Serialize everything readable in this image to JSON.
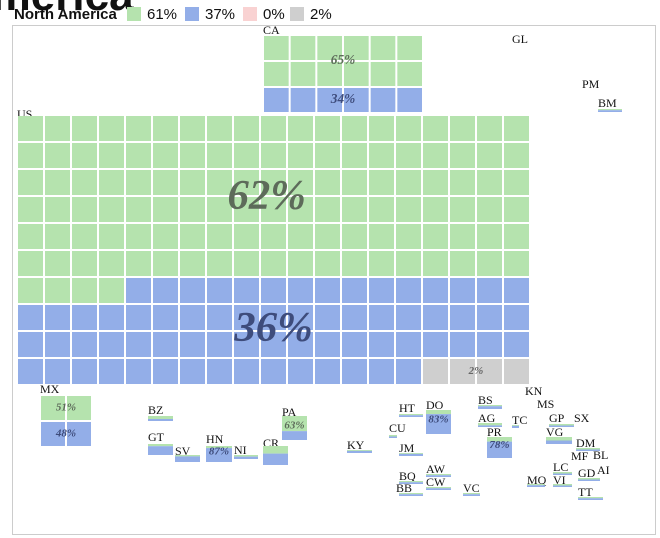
{
  "chart_data": {
    "type": "waffle-map",
    "title": "North America",
    "series": [
      {
        "name": "61%",
        "color": "#b5e3ae"
      },
      {
        "name": "37%",
        "color": "#93aee8"
      },
      {
        "name": "0%",
        "color": "#f9d2d2"
      },
      {
        "name": "2%",
        "color": "#cfcfcf"
      }
    ],
    "countries": [
      {
        "code": "US",
        "values": [
          62,
          36,
          0,
          2
        ],
        "value_labels": [
          "62%",
          "36%",
          null,
          "2%"
        ]
      },
      {
        "code": "CA",
        "values": [
          65,
          34,
          0,
          1
        ],
        "value_labels": [
          "65%",
          "34%",
          null,
          null
        ]
      },
      {
        "code": "MX",
        "values": [
          51,
          48,
          0,
          1
        ],
        "value_labels": [
          "51%",
          "48%",
          null,
          null
        ]
      },
      {
        "code": "GL"
      },
      {
        "code": "PM"
      },
      {
        "code": "BM",
        "values": [
          40,
          60,
          0,
          0
        ]
      },
      {
        "code": "BZ",
        "values": [
          60,
          40,
          0,
          0
        ]
      },
      {
        "code": "GT",
        "values": [
          20,
          80,
          0,
          0
        ]
      },
      {
        "code": "SV",
        "values": [
          20,
          80,
          0,
          0
        ]
      },
      {
        "code": "HN",
        "values": [
          13,
          87,
          0,
          0
        ],
        "value_labels": [
          null,
          "87%",
          null,
          null
        ]
      },
      {
        "code": "NI",
        "values": [
          40,
          60,
          0,
          0
        ]
      },
      {
        "code": "CR",
        "values": [
          40,
          60,
          0,
          0
        ]
      },
      {
        "code": "PA",
        "values": [
          63,
          37,
          0,
          0
        ],
        "value_labels": [
          "63%",
          null,
          null,
          null
        ]
      },
      {
        "code": "KY",
        "values": [
          30,
          70,
          0,
          0
        ]
      },
      {
        "code": "HT",
        "values": [
          40,
          60,
          0,
          0
        ]
      },
      {
        "code": "CU",
        "values": [
          50,
          50,
          0,
          0
        ]
      },
      {
        "code": "JM",
        "values": [
          30,
          70,
          0,
          0
        ]
      },
      {
        "code": "DO",
        "values": [
          17,
          83,
          0,
          0
        ],
        "value_labels": [
          null,
          "83%",
          null,
          null
        ]
      },
      {
        "code": "BS",
        "values": [
          30,
          70,
          0,
          0
        ]
      },
      {
        "code": "AG",
        "values": [
          60,
          40,
          0,
          0
        ]
      },
      {
        "code": "TC",
        "values": [
          30,
          70,
          0,
          0
        ]
      },
      {
        "code": "PR",
        "values": [
          22,
          78,
          0,
          0
        ],
        "value_labels": [
          null,
          "78%",
          null,
          null
        ]
      },
      {
        "code": "KN"
      },
      {
        "code": "MS"
      },
      {
        "code": "GP",
        "values": [
          50,
          50,
          0,
          0
        ]
      },
      {
        "code": "SX"
      },
      {
        "code": "VG",
        "values": [
          50,
          50,
          0,
          0
        ]
      },
      {
        "code": "DM",
        "values": [
          50,
          50,
          0,
          0
        ]
      },
      {
        "code": "MF"
      },
      {
        "code": "BL"
      },
      {
        "code": "LC",
        "values": [
          50,
          50,
          0,
          0
        ]
      },
      {
        "code": "GD",
        "values": [
          50,
          50,
          0,
          0
        ]
      },
      {
        "code": "AI"
      },
      {
        "code": "MQ",
        "values": [
          40,
          60,
          0,
          0
        ]
      },
      {
        "code": "VI",
        "values": [
          50,
          50,
          0,
          0
        ]
      },
      {
        "code": "TT",
        "values": [
          40,
          60,
          0,
          0
        ]
      },
      {
        "code": "BQ",
        "values": [
          40,
          60,
          0,
          0
        ]
      },
      {
        "code": "AW",
        "values": [
          40,
          60,
          0,
          0
        ]
      },
      {
        "code": "BB",
        "values": [
          40,
          60,
          0,
          0
        ]
      },
      {
        "code": "CW",
        "values": [
          40,
          60,
          0,
          0
        ]
      },
      {
        "code": "VC",
        "values": [
          40,
          60,
          0,
          0
        ]
      }
    ]
  }
}
